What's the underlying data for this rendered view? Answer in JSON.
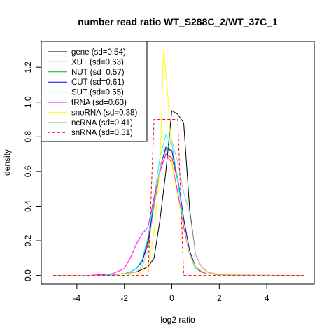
{
  "chart_data": {
    "type": "line",
    "title": "number read ratio WT_S288C_2/WT_37C_1",
    "xlabel": "log2 ratio",
    "ylabel": "density",
    "xlim": [
      -5.5,
      6.0
    ],
    "ylim": [
      -0.05,
      1.35
    ],
    "x_ticks": [
      -4,
      -2,
      0,
      2,
      4
    ],
    "y_ticks": [
      0.0,
      0.2,
      0.4,
      0.6,
      0.8,
      1.0,
      1.2
    ],
    "x_tick_labels": [
      "-4",
      "-2",
      "0",
      "2",
      "4"
    ],
    "y_tick_labels": [
      "0.0",
      "0.2",
      "0.4",
      "0.6",
      "0.8",
      "1.0",
      "1.2"
    ],
    "grid": false,
    "legend_position": "top-left",
    "series": [
      {
        "name": "gene (sd=0.54)",
        "color": "#000000",
        "dashed": false,
        "x": [
          -5.0,
          -3.0,
          -2.5,
          -2.0,
          -1.5,
          -1.0,
          -0.75,
          -0.5,
          -0.25,
          0.0,
          0.25,
          0.5,
          0.75,
          1.0,
          1.25,
          1.5,
          2.0,
          2.5,
          3.0,
          5.6
        ],
        "y": [
          0.0,
          0.0,
          0.005,
          0.01,
          0.02,
          0.05,
          0.1,
          0.32,
          0.6,
          0.95,
          0.93,
          0.88,
          0.38,
          0.12,
          0.05,
          0.02,
          0.005,
          0.0,
          0.0,
          0.0
        ]
      },
      {
        "name": "XUT (sd=0.63)",
        "color": "#ff0000",
        "dashed": false,
        "x": [
          -5.0,
          -3.0,
          -2.5,
          -2.0,
          -1.75,
          -1.5,
          -1.25,
          -1.0,
          -0.75,
          -0.5,
          -0.25,
          0.0,
          0.25,
          0.5,
          0.75,
          1.0,
          1.25,
          1.5,
          2.0,
          2.5,
          5.6
        ],
        "y": [
          0.0,
          0.0,
          0.005,
          0.01,
          0.02,
          0.04,
          0.08,
          0.18,
          0.4,
          0.6,
          0.7,
          0.68,
          0.55,
          0.32,
          0.14,
          0.05,
          0.02,
          0.01,
          0.005,
          0.0,
          0.0
        ]
      },
      {
        "name": "NUT (sd=0.57)",
        "color": "#00bb00",
        "dashed": false,
        "x": [
          -5.0,
          -3.0,
          -2.5,
          -2.0,
          -1.75,
          -1.5,
          -1.25,
          -1.0,
          -0.75,
          -0.5,
          -0.25,
          0.0,
          0.25,
          0.5,
          0.75,
          1.0,
          1.25,
          1.5,
          2.0,
          2.5,
          5.6
        ],
        "y": [
          0.0,
          0.0,
          0.005,
          0.01,
          0.02,
          0.04,
          0.09,
          0.22,
          0.42,
          0.62,
          0.73,
          0.72,
          0.55,
          0.3,
          0.12,
          0.04,
          0.02,
          0.01,
          0.005,
          0.0,
          0.0
        ]
      },
      {
        "name": "CUT (sd=0.61)",
        "color": "#0000ff",
        "dashed": false,
        "x": [
          -5.0,
          -3.0,
          -2.5,
          -2.0,
          -1.75,
          -1.5,
          -1.25,
          -1.0,
          -0.75,
          -0.5,
          -0.25,
          0.0,
          0.25,
          0.5,
          0.75,
          1.0,
          1.25,
          1.5,
          2.0,
          2.5,
          5.6
        ],
        "y": [
          0.0,
          0.0,
          0.005,
          0.01,
          0.02,
          0.04,
          0.08,
          0.2,
          0.4,
          0.62,
          0.74,
          0.72,
          0.56,
          0.33,
          0.14,
          0.05,
          0.02,
          0.01,
          0.005,
          0.0,
          0.0
        ]
      },
      {
        "name": "SUT (sd=0.55)",
        "color": "#00ffff",
        "dashed": false,
        "x": [
          -5.0,
          -3.0,
          -2.5,
          -2.0,
          -1.75,
          -1.5,
          -1.25,
          -1.0,
          -0.75,
          -0.5,
          -0.25,
          0.0,
          0.25,
          0.5,
          0.75,
          1.0,
          1.25,
          1.5,
          2.0,
          2.5,
          5.6
        ],
        "y": [
          0.0,
          0.0,
          0.005,
          0.01,
          0.02,
          0.04,
          0.09,
          0.22,
          0.45,
          0.68,
          0.81,
          0.76,
          0.55,
          0.3,
          0.12,
          0.04,
          0.02,
          0.01,
          0.005,
          0.0,
          0.0
        ]
      },
      {
        "name": "tRNA (sd=0.63)",
        "color": "#ff00ff",
        "dashed": false,
        "x": [
          -5.0,
          -3.5,
          -3.0,
          -2.5,
          -2.0,
          -1.75,
          -1.5,
          -1.25,
          -1.0,
          -0.75,
          -0.5,
          -0.25,
          0.0,
          0.25,
          0.5,
          0.75,
          1.0,
          1.25,
          1.5,
          2.0,
          2.5,
          5.6
        ],
        "y": [
          0.0,
          0.0,
          0.005,
          0.01,
          0.04,
          0.1,
          0.18,
          0.24,
          0.28,
          0.45,
          0.6,
          0.7,
          0.65,
          0.48,
          0.28,
          0.12,
          0.05,
          0.02,
          0.01,
          0.005,
          0.0,
          0.0
        ]
      },
      {
        "name": "snoRNA (sd=0.38)",
        "color": "#ffff00",
        "dashed": false,
        "x": [
          -5.0,
          -2.0,
          -1.5,
          -1.25,
          -1.0,
          -0.75,
          -0.5,
          -0.35,
          -0.2,
          0.0,
          0.25,
          0.5,
          0.75,
          1.0,
          1.5,
          2.0,
          5.6
        ],
        "y": [
          0.0,
          0.0,
          0.01,
          0.02,
          0.05,
          0.25,
          0.62,
          1.3,
          1.1,
          0.65,
          0.45,
          0.3,
          0.12,
          0.05,
          0.01,
          0.0,
          0.0
        ]
      },
      {
        "name": "ncRNA (sd=0.41)",
        "color": "#c0c0c0",
        "dashed": false,
        "x": [
          -5.0,
          -2.5,
          -2.0,
          -1.5,
          -1.25,
          -1.0,
          -0.75,
          -0.5,
          -0.25,
          0.0,
          0.25,
          0.5,
          0.75,
          1.0,
          1.25,
          1.5,
          2.0,
          5.6
        ],
        "y": [
          0.0,
          0.0,
          0.01,
          0.02,
          0.05,
          0.15,
          0.4,
          0.62,
          0.72,
          0.78,
          0.65,
          0.48,
          0.36,
          0.12,
          0.05,
          0.02,
          0.005,
          0.0
        ]
      },
      {
        "name": "snRNA (sd=0.31)",
        "color": "#ff0000",
        "dashed": true,
        "x": [
          -5.0,
          -1.0,
          -0.75,
          -0.5,
          -0.25,
          0.0,
          0.25,
          0.5,
          1.0,
          2.0,
          3.0,
          5.6
        ],
        "y": [
          0.0,
          0.0,
          0.9,
          0.9,
          0.9,
          0.9,
          0.9,
          0.0,
          0.0,
          0.0,
          0.0,
          0.0
        ]
      }
    ]
  }
}
